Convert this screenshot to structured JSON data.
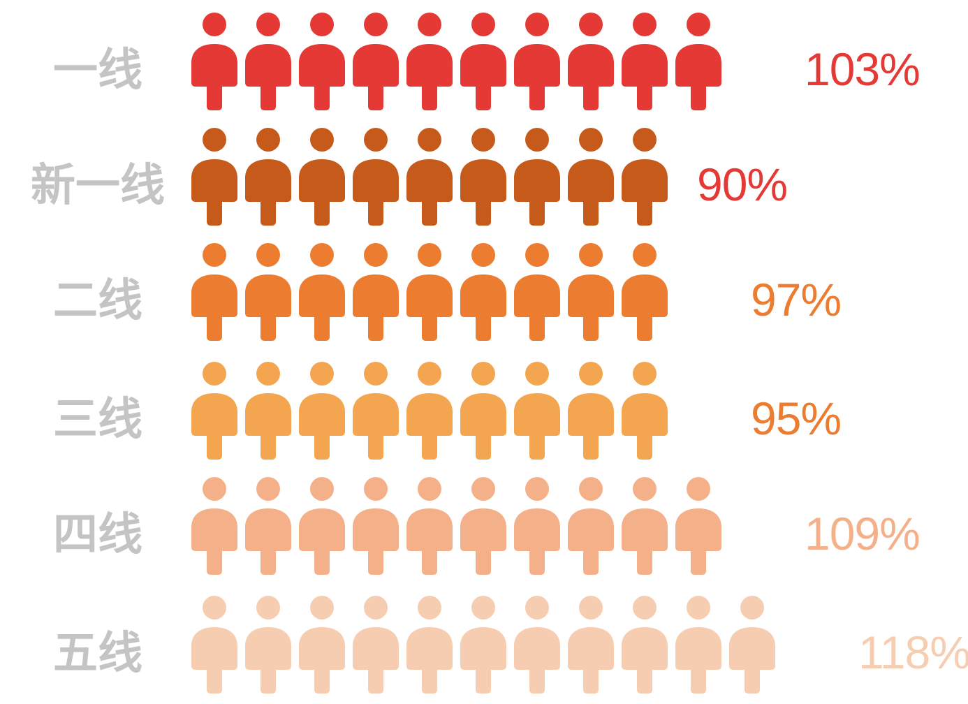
{
  "chart_data": {
    "type": "pictograph",
    "unit_per_icon": 10,
    "categories": [
      "一线",
      "新一线",
      "二线",
      "三线",
      "四线",
      "五线"
    ],
    "values": [
      103,
      90,
      97,
      95,
      109,
      118
    ],
    "value_labels": [
      "103%",
      "90%",
      "97%",
      "95%",
      "109%",
      "118%"
    ],
    "icon_colors": [
      "#e53935",
      "#c55a1a",
      "#ec7c30",
      "#f3a54f",
      "#f4b088",
      "#f6cdb0"
    ],
    "label_colors": [
      "#e53935",
      "#e53935",
      "#ec7c30",
      "#ec7c30",
      "#f4b088",
      "#f6cdb0"
    ],
    "icon": "person-icon"
  }
}
